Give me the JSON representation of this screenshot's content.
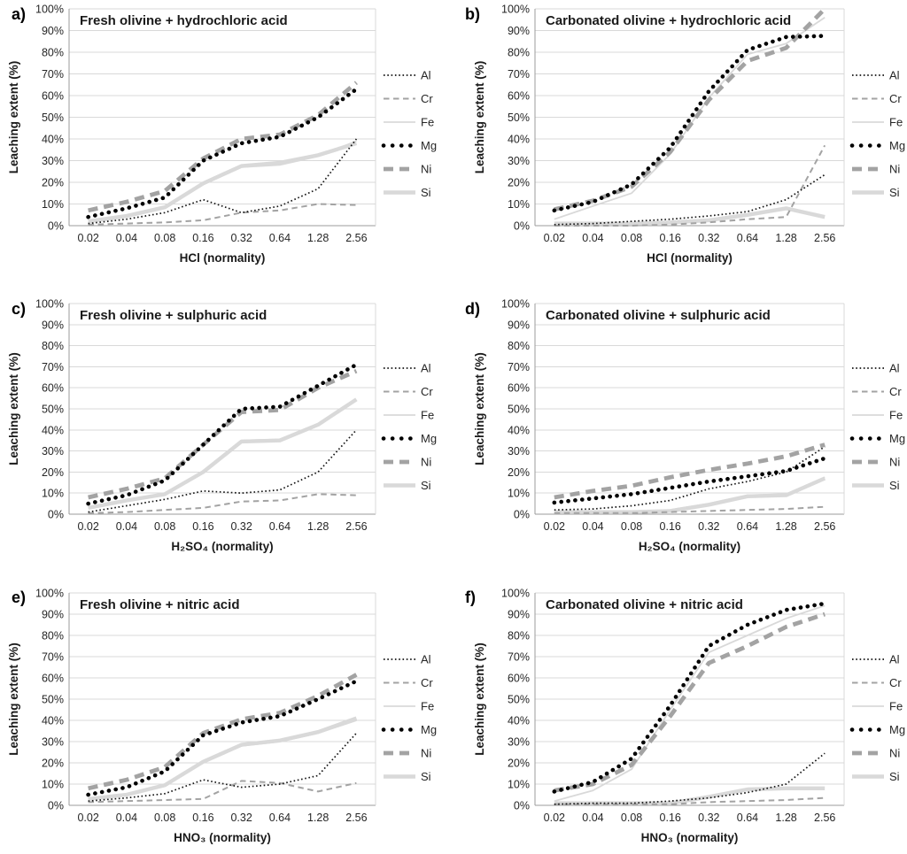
{
  "figure": {
    "y_ticks": [
      "0%",
      "10%",
      "20%",
      "30%",
      "40%",
      "50%",
      "60%",
      "70%",
      "80%",
      "90%",
      "100%"
    ],
    "x_ticks": [
      "0.02",
      "0.04",
      "0.08",
      "0.16",
      "0.32",
      "0.64",
      "1.28",
      "2.56"
    ],
    "legend_labels": [
      "Al",
      "Cr",
      "Fe",
      "Mg",
      "Ni",
      "Si"
    ],
    "colors": {
      "black_series": "#141414",
      "medium_gray_series": "#a3a3a3",
      "light_gray_series": "#d9d9d9",
      "gridline": "#d9d9d9",
      "axis": "#9b9b9b",
      "background": "#ffffff"
    }
  },
  "series_styles": {
    "Al": {
      "color": "#141414",
      "style": "dotted",
      "weight": "thin"
    },
    "Cr": {
      "color": "#a3a3a3",
      "style": "dashed",
      "weight": "thin"
    },
    "Fe": {
      "color": "#d9d9d9",
      "style": "solid",
      "weight": "thin"
    },
    "Mg": {
      "color": "#000000",
      "style": "round-dotted",
      "weight": "bold"
    },
    "Ni": {
      "color": "#a3a3a3",
      "style": "dashed",
      "weight": "bold"
    },
    "Si": {
      "color": "#d9d9d9",
      "style": "solid",
      "weight": "bold"
    }
  },
  "chart_data": [
    {
      "type": "line",
      "panel_label": "a)",
      "title": "Fresh olivine + hydrochloric acid",
      "xlabel": "HCl (normality)",
      "ylabel": "Leaching extent (%)",
      "ylim": [
        0,
        100
      ],
      "grid": true,
      "legend_position": "right",
      "x_categories": [
        "0.02",
        "0.04",
        "0.08",
        "0.16",
        "0.32",
        "0.64",
        "1.28",
        "2.56"
      ],
      "series": [
        {
          "name": "Al",
          "values": [
            1,
            3,
            6,
            12,
            6,
            9,
            17,
            40
          ]
        },
        {
          "name": "Cr",
          "values": [
            0.5,
            1,
            1.5,
            2.5,
            6,
            7,
            10,
            9.5
          ]
        },
        {
          "name": "Fe",
          "values": [
            1.5,
            4,
            8,
            19,
            27,
            28,
            32,
            39
          ]
        },
        {
          "name": "Mg",
          "values": [
            4,
            8,
            13,
            30,
            38,
            41,
            50,
            63
          ]
        },
        {
          "name": "Ni",
          "values": [
            7,
            11,
            16,
            31,
            40,
            42,
            51,
            66
          ]
        },
        {
          "name": "Si",
          "values": [
            2,
            4.5,
            8.5,
            19.5,
            27.5,
            29,
            32.5,
            38
          ]
        }
      ]
    },
    {
      "type": "line",
      "panel_label": "b)",
      "title": "Carbonated olivine + hydrochloric acid",
      "xlabel": "HCl (normality)",
      "ylabel": "Leaching extent (%)",
      "ylim": [
        0,
        100
      ],
      "grid": true,
      "legend_position": "right",
      "x_categories": [
        "0.02",
        "0.04",
        "0.08",
        "0.16",
        "0.32",
        "0.64",
        "1.28",
        "2.56"
      ],
      "series": [
        {
          "name": "Al",
          "values": [
            0.5,
            1,
            2,
            3,
            4.5,
            6.5,
            12,
            23.5
          ]
        },
        {
          "name": "Cr",
          "values": [
            0,
            0,
            0,
            0.5,
            1.5,
            3,
            4,
            37
          ]
        },
        {
          "name": "Fe",
          "values": [
            3,
            9,
            15,
            33,
            59,
            79,
            84,
            96
          ]
        },
        {
          "name": "Mg",
          "values": [
            7,
            11,
            19,
            36,
            62,
            81,
            87,
            87.5
          ]
        },
        {
          "name": "Ni",
          "values": [
            7.5,
            11.5,
            18,
            34,
            58,
            76,
            82,
            100
          ]
        },
        {
          "name": "Si",
          "values": [
            1,
            1,
            1,
            1.5,
            2.5,
            5,
            8,
            4
          ]
        }
      ]
    },
    {
      "type": "line",
      "panel_label": "c)",
      "title": "Fresh olivine + sulphuric acid",
      "xlabel": "H₂SO₄ (normality)",
      "ylabel": "Leaching extent (%)",
      "ylim": [
        0,
        100
      ],
      "grid": true,
      "legend_position": "right",
      "x_categories": [
        "0.02",
        "0.04",
        "0.08",
        "0.16",
        "0.32",
        "0.64",
        "1.28",
        "2.56"
      ],
      "series": [
        {
          "name": "Al",
          "values": [
            1,
            4,
            7,
            11,
            10,
            11.5,
            20,
            40
          ]
        },
        {
          "name": "Cr",
          "values": [
            0.5,
            1,
            2,
            3,
            6,
            6.5,
            9.5,
            9
          ]
        },
        {
          "name": "Fe",
          "values": [
            3,
            6.5,
            9.5,
            20,
            35,
            35.5,
            43,
            54
          ]
        },
        {
          "name": "Mg",
          "values": [
            5,
            9,
            16,
            33,
            50,
            51,
            61,
            71
          ]
        },
        {
          "name": "Ni",
          "values": [
            8,
            12,
            17,
            33,
            48.5,
            49.5,
            60,
            68
          ]
        },
        {
          "name": "Si",
          "values": [
            3,
            6.5,
            9.5,
            20,
            34.5,
            35,
            42.5,
            54.5
          ]
        }
      ]
    },
    {
      "type": "line",
      "panel_label": "d)",
      "title": "Carbonated olivine + sulphuric acid",
      "xlabel": "H₂SO₄ (normality)",
      "ylabel": "Leaching extent (%)",
      "ylim": [
        0,
        100
      ],
      "grid": true,
      "legend_position": "right",
      "x_categories": [
        "0.02",
        "0.04",
        "0.08",
        "0.16",
        "0.32",
        "0.64",
        "1.28",
        "2.56"
      ],
      "series": [
        {
          "name": "Al",
          "values": [
            2,
            2.5,
            4,
            6.5,
            12,
            15.5,
            20,
            32
          ]
        },
        {
          "name": "Cr",
          "values": [
            0.5,
            0.5,
            0.5,
            1,
            1.5,
            2,
            2.5,
            3.5
          ]
        },
        {
          "name": "Fe",
          "values": [
            1,
            1,
            1,
            2,
            5,
            9,
            9.5,
            17.5
          ]
        },
        {
          "name": "Mg",
          "values": [
            5.5,
            7.5,
            9.5,
            12.5,
            15.5,
            18,
            20.5,
            26.5
          ]
        },
        {
          "name": "Ni",
          "values": [
            8,
            11,
            13.5,
            17.5,
            21,
            24,
            27.5,
            33
          ]
        },
        {
          "name": "Si",
          "values": [
            1,
            1,
            1,
            1.5,
            4.5,
            8.5,
            9,
            17
          ]
        }
      ]
    },
    {
      "type": "line",
      "panel_label": "e)",
      "title": "Fresh olivine + nitric acid",
      "xlabel": "HNO₃ (normality)",
      "ylabel": "Leaching extent (%)",
      "ylim": [
        0,
        100
      ],
      "grid": true,
      "legend_position": "right",
      "x_categories": [
        "0.02",
        "0.04",
        "0.08",
        "0.16",
        "0.32",
        "0.64",
        "1.28",
        "2.56"
      ],
      "series": [
        {
          "name": "Al",
          "values": [
            2,
            3.5,
            5.5,
            12,
            8.5,
            10,
            14,
            34
          ]
        },
        {
          "name": "Cr",
          "values": [
            1.5,
            2,
            2.5,
            3,
            11.5,
            10.5,
            6.5,
            10.5
          ]
        },
        {
          "name": "Fe",
          "values": [
            3,
            5,
            9.5,
            20,
            28,
            30,
            34,
            40
          ]
        },
        {
          "name": "Mg",
          "values": [
            5,
            8.5,
            16,
            33,
            39,
            42,
            50,
            58.5
          ]
        },
        {
          "name": "Ni",
          "values": [
            8,
            12,
            18,
            34,
            40.5,
            43.5,
            51.5,
            61.5
          ]
        },
        {
          "name": "Si",
          "values": [
            3,
            5,
            9.5,
            20.5,
            28.5,
            30.5,
            34.5,
            41
          ]
        }
      ]
    },
    {
      "type": "line",
      "panel_label": "f)",
      "title": "Carbonated olivine + nitric acid",
      "xlabel": "HNO₃ (normality)",
      "ylabel": "Leaching extent (%)",
      "ylim": [
        0,
        100
      ],
      "grid": true,
      "legend_position": "right",
      "x_categories": [
        "0.02",
        "0.04",
        "0.08",
        "0.16",
        "0.32",
        "0.64",
        "1.28",
        "2.56"
      ],
      "series": [
        {
          "name": "Al",
          "values": [
            0.5,
            1,
            1,
            2,
            3.5,
            6,
            10,
            24.5
          ]
        },
        {
          "name": "Cr",
          "values": [
            0.5,
            0.5,
            0.5,
            0.5,
            1.5,
            2,
            2.5,
            3.5
          ]
        },
        {
          "name": "Fe",
          "values": [
            2,
            7,
            17,
            45,
            72,
            80,
            88,
            94
          ]
        },
        {
          "name": "Mg",
          "values": [
            6.5,
            11,
            22,
            47,
            75,
            85,
            92,
            95
          ]
        },
        {
          "name": "Ni",
          "values": [
            7,
            10,
            19,
            42,
            67,
            75,
            84,
            90
          ]
        },
        {
          "name": "Si",
          "values": [
            1,
            1,
            1,
            1,
            4,
            7.5,
            8,
            8
          ]
        }
      ]
    }
  ]
}
